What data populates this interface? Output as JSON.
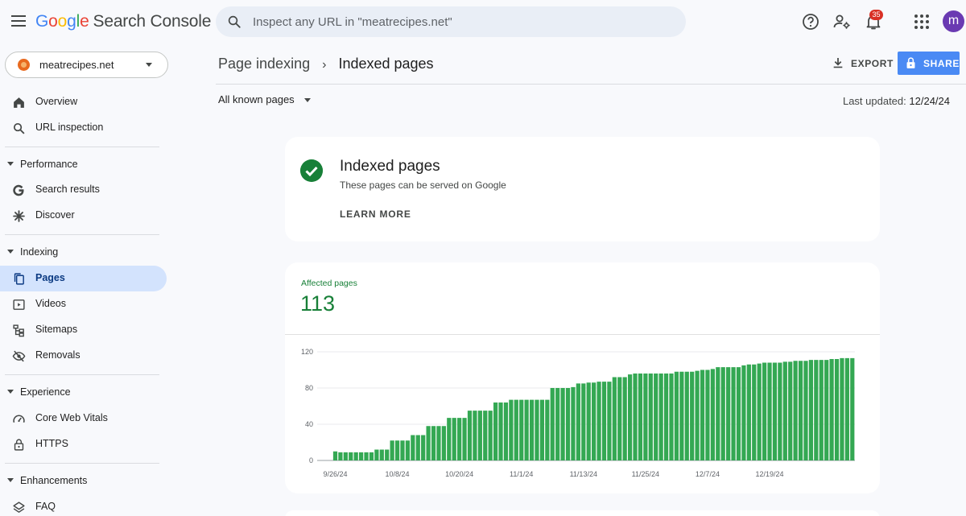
{
  "app": {
    "logo_letters": [
      "G",
      "o",
      "o",
      "g",
      "l",
      "e"
    ],
    "product": "Search Console"
  },
  "search": {
    "placeholder": "Inspect any URL in \"meatrecipes.net\""
  },
  "topbar": {
    "notification_count": "35",
    "avatar_initial": "m",
    "icons": [
      "help-icon",
      "manage-users-icon",
      "bell-icon",
      "apps-grid-icon"
    ]
  },
  "sidebar": {
    "property": "meatrecipes.net",
    "top_items": [
      {
        "label": "Overview",
        "icon": "home-icon"
      },
      {
        "label": "URL inspection",
        "icon": "search-icon"
      }
    ],
    "sections": [
      {
        "label": "Performance",
        "items": [
          {
            "label": "Search results",
            "icon": "google-g-icon"
          },
          {
            "label": "Discover",
            "icon": "asterisk-icon"
          }
        ]
      },
      {
        "label": "Indexing",
        "items": [
          {
            "label": "Pages",
            "icon": "pages-icon",
            "active": true
          },
          {
            "label": "Videos",
            "icon": "video-icon"
          },
          {
            "label": "Sitemaps",
            "icon": "sitemap-icon"
          },
          {
            "label": "Removals",
            "icon": "eye-off-icon"
          }
        ]
      },
      {
        "label": "Experience",
        "items": [
          {
            "label": "Core Web Vitals",
            "icon": "speed-icon"
          },
          {
            "label": "HTTPS",
            "icon": "lock-icon"
          }
        ]
      },
      {
        "label": "Enhancements",
        "items": [
          {
            "label": "FAQ",
            "icon": "layers-icon"
          }
        ]
      }
    ]
  },
  "header": {
    "breadcrumb_parent": "Page indexing",
    "breadcrumb_current": "Indexed pages",
    "export_label": "EXPORT",
    "share_label": "SHARE",
    "filter_label": "All known pages",
    "last_updated_label": "Last updated:",
    "last_updated_value": "12/24/24"
  },
  "status_card": {
    "title": "Indexed pages",
    "subtitle": "These pages can be served on Google",
    "learn_more": "LEARN MORE"
  },
  "metric": {
    "label": "Affected pages",
    "value": "113"
  },
  "colors": {
    "accent_green": "#188038",
    "bar_green": "#34a853",
    "share_blue": "#4a8af4",
    "active_nav": "#d3e3fd"
  },
  "chart_data": {
    "type": "bar",
    "ylim": [
      0,
      120
    ],
    "yticks": [
      0,
      40,
      80,
      120
    ],
    "xtick_labels": [
      "9/26/24",
      "10/8/24",
      "10/20/24",
      "11/1/24",
      "11/13/24",
      "11/25/24",
      "12/7/24",
      "12/19/24"
    ],
    "xtick_indices": [
      3,
      15,
      27,
      39,
      51,
      63,
      75,
      87
    ],
    "values": [
      0,
      0,
      0,
      10,
      9,
      9,
      9,
      9,
      9,
      9,
      9,
      12,
      12,
      12,
      22,
      22,
      22,
      22,
      28,
      28,
      28,
      38,
      38,
      38,
      38,
      47,
      47,
      47,
      47,
      55,
      55,
      55,
      55,
      55,
      64,
      64,
      64,
      67,
      67,
      67,
      67,
      67,
      67,
      67,
      67,
      80,
      80,
      80,
      80,
      81,
      85,
      85,
      86,
      86,
      87,
      87,
      87,
      92,
      92,
      92,
      95,
      96,
      96,
      96,
      96,
      96,
      96,
      96,
      96,
      98,
      98,
      98,
      98,
      99,
      100,
      100,
      101,
      103,
      103,
      103,
      103,
      103,
      105,
      106,
      106,
      107,
      108,
      108,
      108,
      108,
      109,
      109,
      110,
      110,
      110,
      111,
      111,
      111,
      111,
      112,
      112,
      113,
      113,
      113
    ]
  }
}
